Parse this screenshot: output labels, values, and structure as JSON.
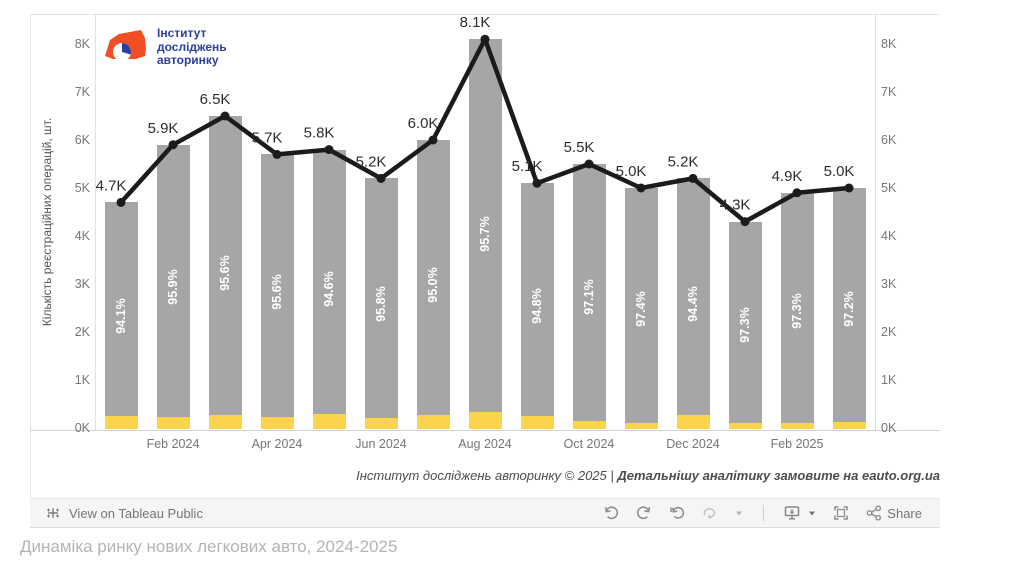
{
  "logo": {
    "name_lines": [
      "Інститут",
      "досліджень",
      "авторинку"
    ],
    "brand_color": "#2b3f9e",
    "car_color": "#f04e23"
  },
  "chart_data": {
    "type": "bar",
    "subtype": "stacked-bars-with-line-overlay",
    "ylabel": "Кількість реєстраційних операцій, шт.",
    "y_ticks": [
      "0K",
      "1K",
      "2K",
      "3K",
      "4K",
      "5K",
      "6K",
      "7K",
      "8K"
    ],
    "ylim_k": [
      0,
      8.4
    ],
    "grid": "off",
    "legend": "none",
    "x_tick_labels": [
      "Feb 2024",
      "Apr 2024",
      "Jun 2024",
      "Aug 2024",
      "Oct 2024",
      "Dec 2024",
      "Feb 2025"
    ],
    "x_tick_slot_indices": [
      1,
      3,
      5,
      7,
      9,
      11,
      13
    ],
    "bars_total_k": [
      4.7,
      5.9,
      6.5,
      5.7,
      5.8,
      5.2,
      6.0,
      8.1,
      5.1,
      5.5,
      5.0,
      5.2,
      4.3,
      4.9,
      5.0
    ],
    "line_labels": [
      "4.7K",
      "5.9K",
      "6.5K",
      "5.7K",
      "5.8K",
      "5.2K",
      "6.0K",
      "8.1K",
      "5.1K",
      "5.5K",
      "5.0K",
      "5.2K",
      "4.3K",
      "4.9K",
      "5.0K"
    ],
    "bar_pct_values": [
      94.1,
      95.9,
      95.6,
      95.6,
      94.6,
      95.8,
      95.0,
      95.7,
      94.8,
      97.1,
      97.4,
      94.4,
      97.3,
      97.3,
      97.2
    ],
    "bar_pct_labels": [
      "94.1%",
      "95.9%",
      "95.6%",
      "95.6%",
      "94.6%",
      "95.8%",
      "95.0%",
      "95.7%",
      "94.8%",
      "97.1%",
      "97.4%",
      "94.4%",
      "97.3%",
      "97.3%",
      "97.2%"
    ],
    "colors": {
      "bar_gray": "#a6a6a6",
      "bar_yellow": "#fbd34d",
      "line": "#1b1b1b",
      "tick_text": "#767676"
    }
  },
  "attribution": {
    "regular": "Інститут досліджень авторинку © 2025 | ",
    "bold": "Детальнішу аналітику замовите на eauto.org.ua"
  },
  "toolbar": {
    "view_label": "View on Tableau Public",
    "share_label": "Share"
  },
  "caption": "Динаміка ринку нових легкових авто, 2024-2025"
}
